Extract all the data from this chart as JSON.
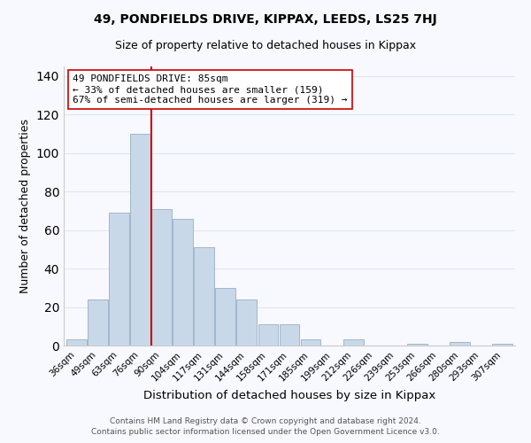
{
  "title": "49, PONDFIELDS DRIVE, KIPPAX, LEEDS, LS25 7HJ",
  "subtitle": "Size of property relative to detached houses in Kippax",
  "xlabel": "Distribution of detached houses by size in Kippax",
  "ylabel": "Number of detached properties",
  "bin_labels": [
    "36sqm",
    "49sqm",
    "63sqm",
    "76sqm",
    "90sqm",
    "104sqm",
    "117sqm",
    "131sqm",
    "144sqm",
    "158sqm",
    "171sqm",
    "185sqm",
    "199sqm",
    "212sqm",
    "226sqm",
    "239sqm",
    "253sqm",
    "266sqm",
    "280sqm",
    "293sqm",
    "307sqm"
  ],
  "bar_heights": [
    3,
    24,
    69,
    110,
    71,
    66,
    51,
    30,
    24,
    11,
    11,
    3,
    0,
    3,
    0,
    0,
    1,
    0,
    2,
    0,
    1
  ],
  "bar_color": "#c8d8e8",
  "bar_edge_color": "#a0b8cc",
  "vline_color": "#cc0000",
  "annotation_text": "49 PONDFIELDS DRIVE: 85sqm\n← 33% of detached houses are smaller (159)\n67% of semi-detached houses are larger (319) →",
  "annotation_box_color": "#ffffff",
  "annotation_box_edge": "#cc0000",
  "ylim": [
    0,
    145
  ],
  "yticks": [
    0,
    20,
    40,
    60,
    80,
    100,
    120,
    140
  ],
  "footer_line1": "Contains HM Land Registry data © Crown copyright and database right 2024.",
  "footer_line2": "Contains public sector information licensed under the Open Government Licence v3.0.",
  "background_color": "#f8f8ff",
  "grid_color": "#dde8f0"
}
